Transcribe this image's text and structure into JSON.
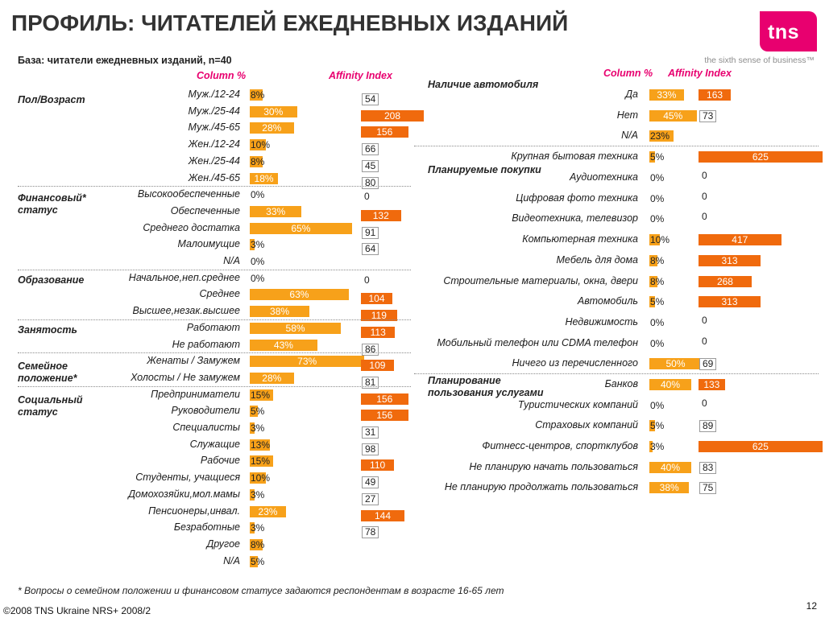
{
  "title": "ПРОФИЛЬ: ЧИТАТЕЛЕЙ ЕЖЕДНЕВНЫХ ИЗДАНИЙ",
  "base": "База: читатели ежедневных изданий, n=40",
  "logo": {
    "text": "tns",
    "tagline": "the sixth sense of business™"
  },
  "column_header": "Column %",
  "affinity_header": "Affinity Index",
  "footnote": "* Вопросы о семейном положении и финансовом статусе задаются респондентам в возрасте 16-65 лет",
  "copyright": "©2008 TNS Ukraine  NRS+ 2008/2",
  "page_number": "12",
  "colors": {
    "column_bar": "#f7a11a",
    "index_bar": "#f06a0d",
    "brand": "#e8006f"
  },
  "chart_data": [
    {
      "type": "bar",
      "panel": "left",
      "measures": [
        "Column %",
        "Affinity Index"
      ],
      "groups": [
        {
          "label": "Пол/Возраст",
          "rows": [
            {
              "label": "Муж./12-24",
              "pct": 8,
              "pct_label": "8%",
              "index": 54
            },
            {
              "label": "Муж./25-44",
              "pct": 30,
              "pct_label": "30%",
              "index": 208
            },
            {
              "label": "Муж./45-65",
              "pct": 28,
              "pct_label": "28%",
              "index": 156
            },
            {
              "label": "Жен./12-24",
              "pct": 10,
              "pct_label": "10%",
              "index": 66
            },
            {
              "label": "Жен./25-44",
              "pct": 8,
              "pct_label": "8%",
              "index": 45
            },
            {
              "label": "Жен./45-65",
              "pct": 18,
              "pct_label": "18%",
              "index": 80
            }
          ]
        },
        {
          "label": "Финансовый* статус",
          "rows": [
            {
              "label": "Высокообеспеченные",
              "pct": 0,
              "pct_label": "0%",
              "index": 0
            },
            {
              "label": "Обеспеченные",
              "pct": 33,
              "pct_label": "33%",
              "index": 132
            },
            {
              "label": "Среднего достатка",
              "pct": 65,
              "pct_label": "65%",
              "index": 91
            },
            {
              "label": "Малоимущие",
              "pct": 3,
              "pct_label": "3%",
              "index": 64
            },
            {
              "label": "N/A",
              "pct": 0,
              "pct_label": "0%",
              "index": null
            }
          ]
        },
        {
          "label": "Образование",
          "rows": [
            {
              "label": "Начальное,неп.среднее",
              "pct": 0,
              "pct_label": "0%",
              "index": 0
            },
            {
              "label": "Среднее",
              "pct": 63,
              "pct_label": "63%",
              "index": 104
            },
            {
              "label": "Высшее,незак.высшее",
              "pct": 38,
              "pct_label": "38%",
              "index": 119
            }
          ]
        },
        {
          "label": "Занятость",
          "rows": [
            {
              "label": "Работают",
              "pct": 58,
              "pct_label": "58%",
              "index": 113
            },
            {
              "label": "Не работают",
              "pct": 43,
              "pct_label": "43%",
              "index": 86
            }
          ]
        },
        {
          "label": "Семейное положение*",
          "rows": [
            {
              "label": "Женаты / Замужем",
              "pct": 73,
              "pct_label": "73%",
              "index": 109
            },
            {
              "label": "Холосты / Не замужем",
              "pct": 28,
              "pct_label": "28%",
              "index": 81
            }
          ]
        },
        {
          "label": "Социальный статус",
          "rows": [
            {
              "label": "Предприниматели",
              "pct": 15,
              "pct_label": "15%",
              "index": 156
            },
            {
              "label": "Руководители",
              "pct": 5,
              "pct_label": "5%",
              "index": 156
            },
            {
              "label": "Специалисты",
              "pct": 3,
              "pct_label": "3%",
              "index": 31
            },
            {
              "label": "Служащие",
              "pct": 13,
              "pct_label": "13%",
              "index": 98
            },
            {
              "label": "Рабочие",
              "pct": 15,
              "pct_label": "15%",
              "index": 110
            },
            {
              "label": "Студенты, учащиеся",
              "pct": 10,
              "pct_label": "10%",
              "index": 49
            },
            {
              "label": "Домохозяйки,мол.мамы",
              "pct": 3,
              "pct_label": "3%",
              "index": 27
            },
            {
              "label": "Пенсионеры,инвал.",
              "pct": 23,
              "pct_label": "23%",
              "index": 144
            },
            {
              "label": "Безработные",
              "pct": 3,
              "pct_label": "3%",
              "index": 78
            },
            {
              "label": "Другое",
              "pct": 8,
              "pct_label": "8%",
              "index": null
            },
            {
              "label": "N/A",
              "pct": 5,
              "pct_label": "5%",
              "index": null
            }
          ]
        }
      ]
    },
    {
      "type": "bar",
      "panel": "right",
      "measures": [
        "Column %",
        "Affinity Index"
      ],
      "groups": [
        {
          "label": "Наличие автомобиля",
          "rows": [
            {
              "label": "Да",
              "pct": 33,
              "pct_label": "33%",
              "index": 163
            },
            {
              "label": "Нет",
              "pct": 45,
              "pct_label": "45%",
              "index": 73
            },
            {
              "label": "N/A",
              "pct": 23,
              "pct_label": "23%",
              "index": null
            }
          ]
        },
        {
          "label": "Планируемые покупки",
          "rows": [
            {
              "label": "Крупная бытовая техника",
              "pct": 5,
              "pct_label": "5%",
              "index": 625
            },
            {
              "label": "Аудиотехника",
              "pct": 0,
              "pct_label": "0%",
              "index": 0
            },
            {
              "label": "Цифровая фото техника",
              "pct": 0,
              "pct_label": "0%",
              "index": 0
            },
            {
              "label": "Видеотехника, телевизор",
              "pct": 0,
              "pct_label": "0%",
              "index": 0
            },
            {
              "label": "Компьютерная техника",
              "pct": 10,
              "pct_label": "10%",
              "index": 417
            },
            {
              "label": "Мебель для дома",
              "pct": 8,
              "pct_label": "8%",
              "index": 313
            },
            {
              "label": "Строительные материалы, окна, двери",
              "pct": 8,
              "pct_label": "8%",
              "index": 268
            },
            {
              "label": "Автомобиль",
              "pct": 5,
              "pct_label": "5%",
              "index": 313
            },
            {
              "label": "Недвижимость",
              "pct": 0,
              "pct_label": "0%",
              "index": 0
            },
            {
              "label": "Мобильный телефон или CDMA телефон",
              "pct": 0,
              "pct_label": "0%",
              "index": 0
            },
            {
              "label": "Ничего из перечисленного",
              "pct": 50,
              "pct_label": "50%",
              "index": 69
            }
          ]
        },
        {
          "label": "Планирование пользования услугами",
          "rows": [
            {
              "label": "Банков",
              "pct": 40,
              "pct_label": "40%",
              "index": 133
            },
            {
              "label": "Туристических компаний",
              "pct": 0,
              "pct_label": "0%",
              "index": 0
            },
            {
              "label": "Страховых компаний",
              "pct": 5,
              "pct_label": "5%",
              "index": 89
            },
            {
              "label": "Фитнесс-центров, спортклубов",
              "pct": 3,
              "pct_label": "3%",
              "index": 625
            },
            {
              "label": "Не планирую начать пользоваться",
              "pct": 40,
              "pct_label": "40%",
              "index": 83
            },
            {
              "label": "Не планирую продолжать пользоваться",
              "pct": 38,
              "pct_label": "38%",
              "index": 75
            }
          ]
        }
      ]
    }
  ]
}
